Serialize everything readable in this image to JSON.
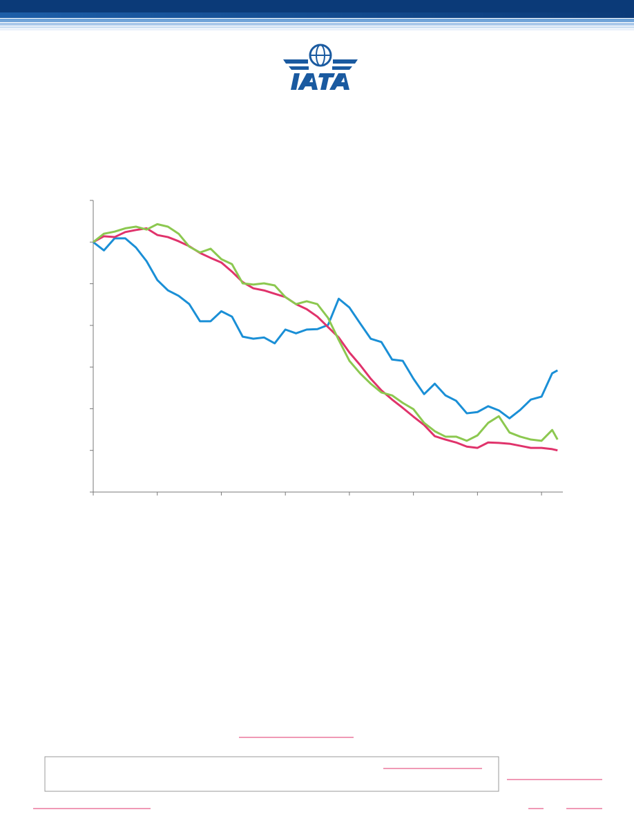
{
  "chart_data": {
    "type": "line",
    "x": [
      0,
      2,
      4,
      6,
      8,
      10,
      12,
      14,
      16,
      18,
      20,
      22,
      24,
      26,
      28,
      30,
      32,
      34,
      36,
      38,
      40,
      42,
      44,
      46,
      48,
      50,
      52,
      54,
      56,
      58,
      60,
      62,
      64,
      66,
      68,
      70,
      72,
      74,
      76,
      78,
      80,
      82,
      84,
      86,
      87
    ],
    "xlim": [
      0,
      88
    ],
    "xticks": [
      0,
      12,
      24,
      36,
      48,
      60,
      72,
      84
    ],
    "ylim": [
      0,
      7
    ],
    "yticks": [
      0,
      1,
      2,
      3,
      4,
      5,
      6,
      7
    ],
    "series": [
      {
        "color": "#1a8fd6",
        "values": [
          6.0,
          5.8,
          6.09,
          6.09,
          5.87,
          5.54,
          5.09,
          4.84,
          4.71,
          4.51,
          4.1,
          4.1,
          4.34,
          4.21,
          3.73,
          3.68,
          3.71,
          3.57,
          3.9,
          3.81,
          3.9,
          3.91,
          4.01,
          4.64,
          4.43,
          4.05,
          3.68,
          3.6,
          3.18,
          3.15,
          2.72,
          2.35,
          2.6,
          2.32,
          2.19,
          1.89,
          1.92,
          2.06,
          1.96,
          1.77,
          1.97,
          2.22,
          2.29,
          2.85,
          2.92
        ]
      },
      {
        "color": "#e0336b",
        "values": [
          6.0,
          6.14,
          6.12,
          6.24,
          6.29,
          6.33,
          6.17,
          6.12,
          6.02,
          5.9,
          5.74,
          5.62,
          5.51,
          5.29,
          5.04,
          4.89,
          4.84,
          4.76,
          4.68,
          4.51,
          4.39,
          4.21,
          3.96,
          3.71,
          3.35,
          3.05,
          2.72,
          2.44,
          2.22,
          2.02,
          1.81,
          1.61,
          1.34,
          1.26,
          1.19,
          1.09,
          1.06,
          1.19,
          1.18,
          1.16,
          1.11,
          1.06,
          1.06,
          1.03,
          1.0
        ]
      },
      {
        "color": "#8cc850",
        "values": [
          6.0,
          6.2,
          6.25,
          6.33,
          6.37,
          6.3,
          6.43,
          6.37,
          6.2,
          5.89,
          5.75,
          5.84,
          5.59,
          5.47,
          5.01,
          4.98,
          5.01,
          4.96,
          4.68,
          4.51,
          4.58,
          4.51,
          4.18,
          3.65,
          3.15,
          2.85,
          2.6,
          2.39,
          2.32,
          2.14,
          1.99,
          1.66,
          1.46,
          1.33,
          1.33,
          1.23,
          1.36,
          1.66,
          1.82,
          1.43,
          1.33,
          1.26,
          1.23,
          1.49,
          1.26
        ]
      }
    ]
  }
}
